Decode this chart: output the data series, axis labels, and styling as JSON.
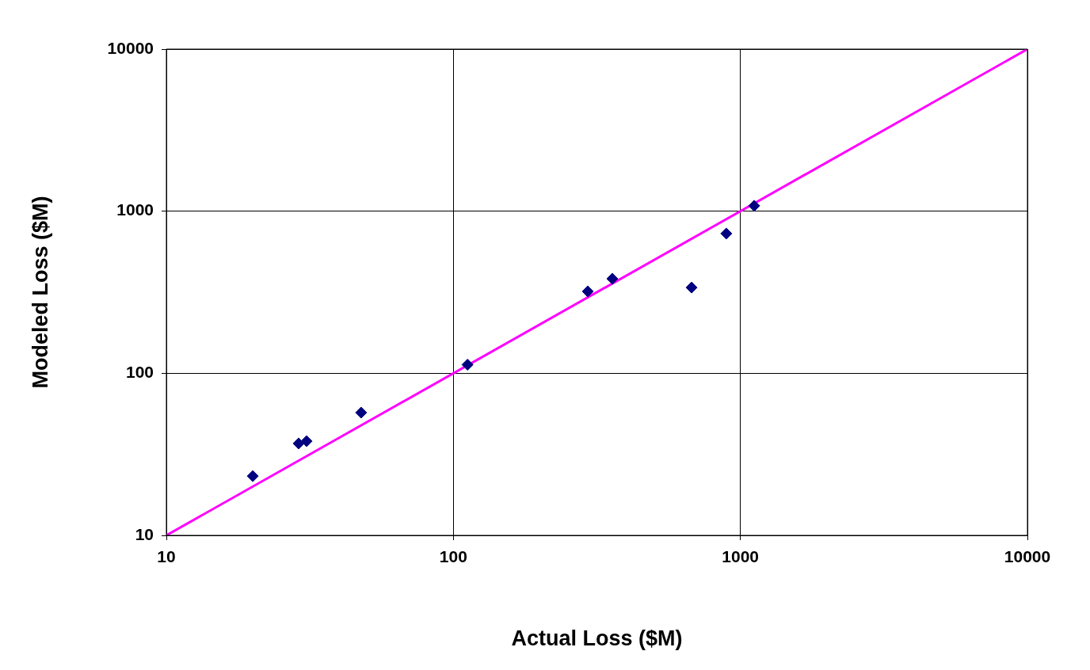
{
  "chart_data": {
    "type": "scatter",
    "xlabel": "Actual Loss ($M)",
    "ylabel": "Modeled Loss ($M)",
    "log": "xy",
    "xlim": [
      10,
      10000
    ],
    "ylim": [
      10,
      10000
    ],
    "xticks": [
      10,
      100,
      1000,
      10000
    ],
    "yticks": [
      10,
      100,
      1000,
      10000
    ],
    "grid": true,
    "series": [
      {
        "type": "scatter",
        "color": "#000080",
        "marker": "diamond",
        "x": [
          20,
          28.9,
          30.8,
          47.7,
          112,
          294,
          358,
          676,
          893,
          1117
        ],
        "values": [
          23.2,
          36.9,
          38.1,
          57.2,
          113,
          320,
          383,
          338,
          728,
          1080
        ]
      },
      {
        "type": "line",
        "color": "#ff00ff",
        "marker": "none",
        "line_style": "solid",
        "x": [
          10,
          10000
        ],
        "values": [
          10,
          10000
        ]
      }
    ]
  }
}
